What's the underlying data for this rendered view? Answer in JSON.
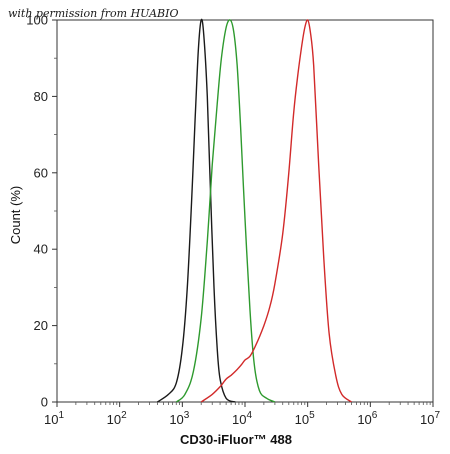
{
  "watermark": "with permission from HUABIO",
  "chart_data": {
    "type": "line",
    "title": "",
    "xlabel": "CD30-iFluor™ 488",
    "ylabel": "Count (%)",
    "xscale": "log",
    "xlim": [
      10,
      10000000
    ],
    "ylim": [
      0,
      100
    ],
    "xticks": [
      {
        "value": 10,
        "label": "10",
        "exp": "1"
      },
      {
        "value": 100,
        "label": "10",
        "exp": "2"
      },
      {
        "value": 1000,
        "label": "10",
        "exp": "3"
      },
      {
        "value": 10000,
        "label": "10",
        "exp": "4"
      },
      {
        "value": 100000,
        "label": "10",
        "exp": "5"
      },
      {
        "value": 1000000,
        "label": "10",
        "exp": "6"
      },
      {
        "value": 10000000,
        "label": "10",
        "exp": "7"
      }
    ],
    "yticks": [
      {
        "value": 0,
        "label": "0"
      },
      {
        "value": 20,
        "label": "20"
      },
      {
        "value": 40,
        "label": "40"
      },
      {
        "value": 60,
        "label": "60"
      },
      {
        "value": 80,
        "label": "80"
      },
      {
        "value": 100,
        "label": "100"
      }
    ],
    "grid": false,
    "legend": "none",
    "series": [
      {
        "color": "#1a1a1a",
        "x": [
          400,
          600,
          800,
          1000,
          1200,
          1400,
          1600,
          1800,
          2000,
          2200,
          2500,
          2800,
          3200,
          3600,
          4000,
          5000,
          7000
        ],
        "y": [
          0,
          2,
          5,
          14,
          30,
          52,
          74,
          92,
          100,
          96,
          80,
          56,
          30,
          14,
          6,
          1,
          0
        ]
      },
      {
        "color": "#2e9a2e",
        "x": [
          800,
          1100,
          1500,
          2000,
          2500,
          3000,
          3600,
          4200,
          5000,
          5800,
          6600,
          7500,
          8500,
          10000,
          12000,
          14000,
          17000,
          22000,
          30000
        ],
        "y": [
          0,
          2,
          8,
          22,
          42,
          62,
          78,
          90,
          98,
          100,
          97,
          88,
          72,
          48,
          24,
          10,
          3,
          1,
          0
        ]
      },
      {
        "color": "#d22a2a",
        "x": [
          2000,
          3000,
          4000,
          5000,
          6000,
          7000,
          8000,
          9000,
          10000,
          12000,
          15000,
          20000,
          25000,
          30000,
          40000,
          50000,
          60000,
          70000,
          80000,
          90000,
          100000,
          110000,
          125000,
          150000,
          180000,
          220000,
          280000,
          350000,
          500000
        ],
        "y": [
          0,
          2,
          4,
          6,
          7,
          8,
          9,
          10,
          11,
          12,
          15,
          20,
          25,
          31,
          44,
          60,
          76,
          86,
          93,
          98,
          100,
          97,
          88,
          62,
          38,
          18,
          7,
          2,
          0
        ]
      }
    ]
  }
}
